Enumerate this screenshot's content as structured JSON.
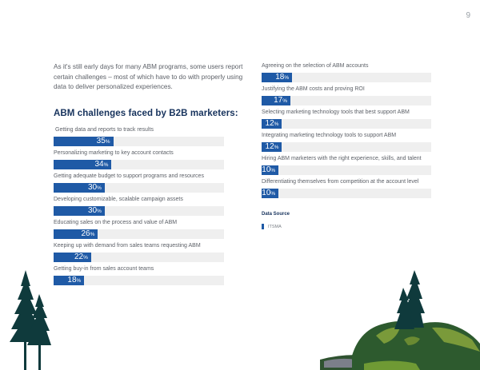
{
  "page_number": "9",
  "intro_text": "As it's still early days for many ABM programs, some users report certain challenges – most of which have to do with properly using data to deliver personalized experiences.",
  "heading": "ABM challenges faced by B2B marketers:",
  "colors": {
    "bar": "#1f5aa6",
    "track": "#efefef",
    "heading": "#16325c"
  },
  "chart_data": {
    "type": "bar",
    "orientation": "horizontal",
    "title": "ABM challenges faced by B2B marketers:",
    "xlabel": "",
    "ylabel": "",
    "xlim": [
      0,
      100
    ],
    "unit": "%",
    "categories": [
      "Getting data and reports to track results",
      "Personalizing marketing to key account contacts",
      "Getting adequate budget to support programs and resources",
      "Developing customizable, scalable campaign assets",
      "Educating sales on the process and value of ABM",
      "Keeping up with demand from sales teams requesting ABM",
      "Getting buy-in from sales account teams",
      "Agreeing on the selection of ABM accounts",
      "Justifying the ABM costs and proving ROI",
      "Selecting marketing technology tools that best support ABM",
      "Integrating marketing technology tools to support ABM",
      "Hiring ABM marketers with the right experience, skills, and talent",
      "Differentiating themselves from competition at the account level"
    ],
    "values": [
      35,
      34,
      30,
      30,
      26,
      22,
      18,
      18,
      17,
      12,
      12,
      10,
      10
    ],
    "data_labels": [
      "35",
      "34",
      "30",
      "30",
      "26",
      "22",
      "18",
      "18",
      "17",
      "12",
      "12",
      "10",
      "10"
    ],
    "columns": {
      "left": [
        0,
        1,
        2,
        3,
        4,
        5,
        6
      ],
      "right": [
        7,
        8,
        9,
        10,
        11,
        12
      ]
    },
    "grid": false,
    "legend": "none"
  },
  "source": {
    "title": "Data Source",
    "name": "ITSMA"
  },
  "pct_symbol": "%"
}
